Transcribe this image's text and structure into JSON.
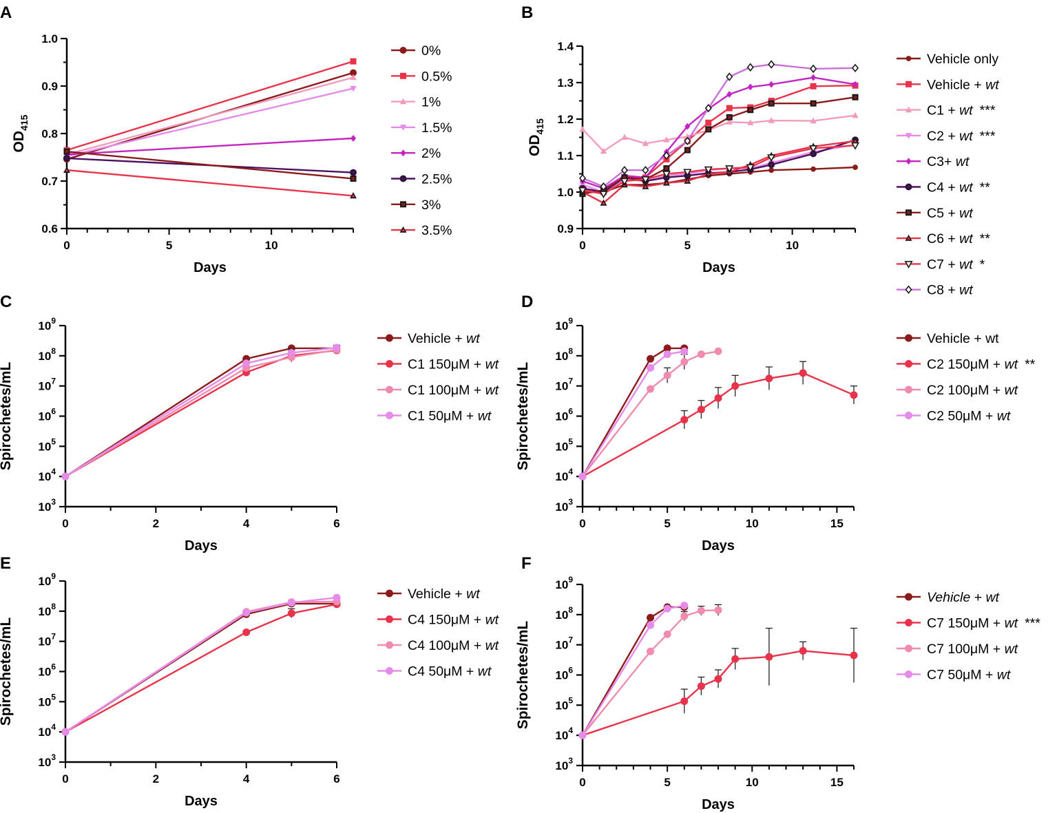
{
  "figure": {
    "panel_labels": [
      "A",
      "B",
      "C",
      "D",
      "E",
      "F"
    ]
  },
  "chart_data": [
    {
      "id": "A",
      "type": "line",
      "xlabel": "Days",
      "ylabel": "OD",
      "ylabel_sub": "415",
      "xlim": [
        0,
        14
      ],
      "ylim": [
        0.6,
        1.0
      ],
      "scale": "linear",
      "xticks": [
        0,
        5,
        10
      ],
      "yticks": [
        0.6,
        0.7,
        0.8,
        0.9,
        1.0
      ],
      "yticklabels": [
        "0.6",
        "0.7",
        "0.8",
        "0.9",
        "1.0"
      ],
      "series": [
        {
          "name": "0%",
          "color": "#8b1a1a",
          "marker": "circle",
          "x": [
            0,
            14
          ],
          "y": [
            0.746,
            0.928
          ]
        },
        {
          "name": "0.5%",
          "color": "#e8334a",
          "marker": "square",
          "x": [
            0,
            14
          ],
          "y": [
            0.765,
            0.952
          ]
        },
        {
          "name": "1%",
          "color": "#f29bbd",
          "marker": "triangle",
          "x": [
            0,
            14
          ],
          "y": [
            0.756,
            0.918
          ]
        },
        {
          "name": "1.5%",
          "color": "#e58be8",
          "marker": "triangle-down",
          "x": [
            0,
            14
          ],
          "y": [
            0.752,
            0.895
          ]
        },
        {
          "name": "2%",
          "color": "#c225c2",
          "marker": "diamond",
          "x": [
            0,
            14
          ],
          "y": [
            0.756,
            0.79
          ]
        },
        {
          "name": "2.5%",
          "color": "#4b1160",
          "marker": "circle-outline",
          "x": [
            0,
            14
          ],
          "y": [
            0.748,
            0.718
          ]
        },
        {
          "name": "3%",
          "color": "#8b1a1a",
          "marker": "square-outline",
          "x": [
            0,
            14
          ],
          "y": [
            0.762,
            0.705
          ]
        },
        {
          "name": "3.5%",
          "color": "#e8334a",
          "marker": "triangle-outline",
          "x": [
            0,
            14
          ],
          "y": [
            0.723,
            0.669
          ]
        }
      ]
    },
    {
      "id": "B",
      "type": "line",
      "xlabel": "Days",
      "ylabel": "OD",
      "ylabel_sub": "415",
      "xlim": [
        0,
        13
      ],
      "ylim": [
        0.9,
        1.4
      ],
      "scale": "linear",
      "xticks": [
        0,
        5,
        10
      ],
      "yticks": [
        0.9,
        1.0,
        1.1,
        1.2,
        1.3,
        1.4
      ],
      "yticklabels": [
        "0.9",
        "1.0",
        "1.1",
        "1.2",
        "1.3",
        "1.4"
      ],
      "series": [
        {
          "name": "Vehicle only",
          "italic": "",
          "stars": "",
          "color": "#8b1a1a",
          "marker": "circle-small",
          "x": [
            0,
            1,
            2,
            3,
            4,
            5,
            6,
            7,
            8,
            9,
            11,
            13
          ],
          "y": [
            1.0,
            1.0,
            1.02,
            1.02,
            1.025,
            1.035,
            1.045,
            1.05,
            1.055,
            1.06,
            1.063,
            1.068
          ]
        },
        {
          "name": "Vehicle + ",
          "italic": "wt",
          "stars": "",
          "color": "#e8334a",
          "marker": "square",
          "x": [
            0,
            1,
            2,
            3,
            4,
            5,
            6,
            7,
            8,
            9,
            11,
            13
          ],
          "y": [
            1.01,
            1.0,
            1.04,
            1.04,
            1.09,
            1.14,
            1.19,
            1.23,
            1.232,
            1.25,
            1.29,
            1.292
          ]
        },
        {
          "name": "C1 + ",
          "italic": "wt",
          "stars": "***",
          "color": "#f29bbd",
          "marker": "triangle",
          "x": [
            0,
            1,
            2,
            3,
            4,
            5,
            6,
            7,
            8,
            9,
            11,
            13
          ],
          "y": [
            1.172,
            1.112,
            1.15,
            1.133,
            1.143,
            1.152,
            1.17,
            1.192,
            1.19,
            1.196,
            1.195,
            1.21
          ]
        },
        {
          "name": "C2 + ",
          "italic": "wt",
          "stars": "***",
          "color": "#e58be8",
          "marker": "triangle-down",
          "x": [
            0,
            1,
            2,
            3,
            4,
            5,
            6,
            7,
            8,
            9,
            11,
            13
          ],
          "y": [
            1.02,
            1.0,
            1.035,
            1.03,
            1.045,
            1.05,
            1.06,
            1.065,
            1.065,
            1.08,
            1.11,
            1.13
          ]
        },
        {
          "name": "C3+ ",
          "italic": "wt",
          "stars": "",
          "color": "#c225c2",
          "marker": "diamond",
          "x": [
            0,
            1,
            2,
            3,
            4,
            5,
            6,
            7,
            8,
            9,
            11,
            13
          ],
          "y": [
            1.03,
            1.01,
            1.045,
            1.04,
            1.11,
            1.18,
            1.228,
            1.268,
            1.288,
            1.295,
            1.314,
            1.295
          ]
        },
        {
          "name": "C4 + ",
          "italic": "wt",
          "stars": "**",
          "color": "#4b1160",
          "marker": "circle-outline",
          "x": [
            0,
            1,
            2,
            3,
            4,
            5,
            6,
            7,
            8,
            9,
            11,
            13
          ],
          "y": [
            1.01,
            1.0,
            1.04,
            1.03,
            1.04,
            1.045,
            1.052,
            1.055,
            1.062,
            1.075,
            1.105,
            1.143
          ]
        },
        {
          "name": "C5 + ",
          "italic": "wt",
          "stars": "",
          "color": "#8b1a1a",
          "marker": "square-outline",
          "x": [
            0,
            1,
            2,
            3,
            4,
            5,
            6,
            7,
            8,
            9,
            11,
            13
          ],
          "y": [
            0.995,
            1.005,
            1.04,
            1.035,
            1.065,
            1.115,
            1.172,
            1.205,
            1.225,
            1.243,
            1.243,
            1.26
          ]
        },
        {
          "name": "C6 + ",
          "italic": "wt",
          "stars": "**",
          "color": "#e8334a",
          "marker": "triangle-outline",
          "x": [
            0,
            1,
            2,
            3,
            4,
            5,
            6,
            7,
            8,
            9,
            11,
            13
          ],
          "y": [
            1.0,
            0.97,
            1.02,
            1.015,
            1.025,
            1.03,
            1.05,
            1.055,
            1.075,
            1.1,
            1.125,
            1.14
          ]
        },
        {
          "name": "C7 + ",
          "italic": "wt",
          "stars": "*",
          "color": "#e8334a",
          "marker": "triangle-down-outline",
          "x": [
            0,
            1,
            2,
            3,
            4,
            5,
            6,
            7,
            8,
            9,
            11,
            13
          ],
          "y": [
            1.005,
            0.995,
            1.03,
            1.035,
            1.05,
            1.055,
            1.062,
            1.065,
            1.068,
            1.095,
            1.12,
            1.128
          ]
        },
        {
          "name": "C8 + ",
          "italic": "wt",
          "stars": "",
          "color": "#c970d6",
          "marker": "diamond-outline",
          "x": [
            0,
            1,
            2,
            3,
            4,
            5,
            6,
            7,
            8,
            9,
            11,
            13
          ],
          "y": [
            1.038,
            1.015,
            1.06,
            1.06,
            1.1,
            1.14,
            1.23,
            1.316,
            1.342,
            1.35,
            1.338,
            1.34
          ]
        }
      ]
    },
    {
      "id": "C",
      "type": "line",
      "xlabel": "Days",
      "ylabel": "Spirochetes/mL",
      "xlim": [
        0,
        6
      ],
      "ylim": [
        3,
        9
      ],
      "scale": "log10",
      "xticks": [
        0,
        2,
        4,
        6
      ],
      "yticks": [
        3,
        4,
        5,
        6,
        7,
        8,
        9
      ],
      "yticklabels": [
        "3",
        "4",
        "5",
        "6",
        "7",
        "8",
        "9"
      ],
      "series": [
        {
          "name": "Vehicle + ",
          "italic": "wt",
          "stars": "",
          "color": "#8b1a1a",
          "marker": "circle",
          "x": [
            0,
            4,
            5,
            6
          ],
          "y": [
            4.0,
            7.9,
            8.25,
            8.25
          ],
          "err": [
            0,
            0,
            0,
            0.1
          ]
        },
        {
          "name": "C1 150μM + ",
          "italic": "wt",
          "stars": "",
          "color": "#e8334a",
          "marker": "circle",
          "x": [
            0,
            4,
            5,
            6
          ],
          "y": [
            4.0,
            7.45,
            8.0,
            8.18
          ],
          "err": [
            0,
            0,
            0.15,
            0.1
          ]
        },
        {
          "name": "C1 100μM + ",
          "italic": "wt",
          "stars": "",
          "color": "#f08bb0",
          "marker": "circle",
          "x": [
            0,
            4,
            5,
            6
          ],
          "y": [
            4.0,
            7.6,
            7.95,
            8.2
          ],
          "err": [
            0,
            0,
            0.15,
            0.05
          ]
        },
        {
          "name": "C1 50μM + ",
          "italic": "wt",
          "stars": "",
          "color": "#e58be8",
          "marker": "circle",
          "x": [
            0,
            4,
            5,
            6
          ],
          "y": [
            4.0,
            7.75,
            8.1,
            8.27
          ],
          "err": [
            0,
            0,
            0.12,
            0.05
          ]
        }
      ]
    },
    {
      "id": "D",
      "type": "line",
      "xlabel": "Days",
      "ylabel": "Spirochetes/mL",
      "xlim": [
        0,
        16
      ],
      "ylim": [
        3,
        9
      ],
      "scale": "log10",
      "xticks": [
        0,
        5,
        10,
        15
      ],
      "yticks": [
        3,
        4,
        5,
        6,
        7,
        8,
        9
      ],
      "yticklabels": [
        "3",
        "4",
        "5",
        "6",
        "7",
        "8",
        "9"
      ],
      "series": [
        {
          "name": "Vehicle + wt",
          "italic": "",
          "stars": "",
          "color": "#8b1a1a",
          "marker": "circle",
          "x": [
            0,
            4,
            5,
            6
          ],
          "y": [
            4.0,
            7.9,
            8.25,
            8.25
          ],
          "err": [
            0,
            0,
            0,
            0
          ]
        },
        {
          "name": "C2 150μM + ",
          "italic": "wt",
          "stars": "**",
          "color": "#e8334a",
          "marker": "circle",
          "x": [
            0,
            6,
            7,
            8,
            9,
            11,
            13,
            16
          ],
          "y": [
            4.0,
            5.88,
            6.22,
            6.6,
            7.0,
            7.25,
            7.43,
            6.7
          ],
          "err": [
            0,
            0.3,
            0.3,
            0.35,
            0.35,
            0.38,
            0.38,
            0.3
          ]
        },
        {
          "name": "C2 100μM + ",
          "italic": "wt",
          "stars": "",
          "color": "#f08bb0",
          "marker": "circle",
          "x": [
            0,
            4,
            5,
            6,
            7,
            8
          ],
          "y": [
            4.0,
            6.9,
            7.35,
            7.8,
            8.05,
            8.15
          ],
          "err": [
            0,
            0,
            0.25,
            0.25,
            0,
            0
          ]
        },
        {
          "name": "C2 50μM + ",
          "italic": "wt",
          "stars": "",
          "color": "#e58be8",
          "marker": "circle",
          "x": [
            0,
            4,
            5,
            6
          ],
          "y": [
            4.0,
            7.6,
            8.05,
            8.15
          ],
          "err": [
            0,
            0,
            0,
            0
          ]
        }
      ]
    },
    {
      "id": "E",
      "type": "line",
      "xlabel": "Days",
      "ylabel": "Spirochetes/mL",
      "xlim": [
        0,
        6
      ],
      "ylim": [
        3,
        9
      ],
      "scale": "log10",
      "xticks": [
        0,
        2,
        4,
        6
      ],
      "yticks": [
        3,
        4,
        5,
        6,
        7,
        8,
        9
      ],
      "yticklabels": [
        "3",
        "4",
        "5",
        "6",
        "7",
        "8",
        "9"
      ],
      "series": [
        {
          "name": "Vehicle + ",
          "italic": "wt",
          "stars": "",
          "color": "#8b1a1a",
          "marker": "circle",
          "x": [
            0,
            4,
            5,
            6
          ],
          "y": [
            4.0,
            7.9,
            8.25,
            8.25
          ],
          "err": [
            0,
            0,
            0,
            0.1
          ]
        },
        {
          "name": "C4 150μM + ",
          "italic": "wt",
          "stars": "",
          "color": "#e8334a",
          "marker": "circle",
          "x": [
            0,
            4,
            5,
            6
          ],
          "y": [
            4.0,
            7.3,
            7.93,
            8.23
          ],
          "err": [
            0,
            0,
            0.15,
            0.1
          ]
        },
        {
          "name": "C4 100μM + ",
          "italic": "wt",
          "stars": "",
          "color": "#f08bb0",
          "marker": "circle",
          "x": [
            0,
            4,
            5,
            6
          ],
          "y": [
            4.0,
            7.98,
            8.3,
            8.32
          ],
          "err": [
            0,
            0,
            0,
            0
          ]
        },
        {
          "name": "C4 50μM + ",
          "italic": "wt",
          "stars": "",
          "color": "#e58be8",
          "marker": "circle",
          "x": [
            0,
            4,
            5,
            6
          ],
          "y": [
            4.0,
            7.95,
            8.28,
            8.45
          ],
          "err": [
            0,
            0,
            0,
            0
          ]
        }
      ]
    },
    {
      "id": "F",
      "type": "line",
      "xlabel": "Days",
      "ylabel": "Spirochetes/mL",
      "xlim": [
        0,
        16
      ],
      "ylim": [
        3,
        9
      ],
      "scale": "log10",
      "xticks": [
        0,
        5,
        10,
        15
      ],
      "yticks": [
        3,
        4,
        5,
        6,
        7,
        8,
        9
      ],
      "yticklabels": [
        "3",
        "4",
        "5",
        "6",
        "7",
        "8",
        "9"
      ],
      "series": [
        {
          "name": "",
          "italic": "Vehicle",
          "tail": " + ",
          "italic2": "wt",
          "stars": "",
          "color": "#8b1a1a",
          "marker": "circle",
          "x": [
            0,
            4,
            5,
            6
          ],
          "y": [
            4.0,
            7.9,
            8.25,
            8.25
          ],
          "err": [
            0,
            0,
            0,
            0
          ]
        },
        {
          "name": "C7 150μM + ",
          "italic": "wt",
          "stars": "***",
          "color": "#e8334a",
          "marker": "circle",
          "x": [
            0,
            6,
            7,
            8,
            9,
            11,
            13,
            16
          ],
          "y": [
            4.0,
            5.13,
            5.63,
            5.87,
            6.53,
            6.6,
            6.8,
            6.65
          ],
          "err": [
            0,
            0.4,
            0.3,
            0.3,
            0.35,
            0.95,
            0.3,
            0.9
          ]
        },
        {
          "name": "C7 100μM + ",
          "italic": "wt",
          "stars": "",
          "color": "#f08bb0",
          "marker": "circle",
          "x": [
            0,
            4,
            5,
            6,
            7,
            8
          ],
          "y": [
            4.0,
            6.78,
            7.35,
            7.95,
            8.13,
            8.15
          ],
          "err": [
            0,
            0,
            0,
            0.15,
            0.15,
            0.18
          ]
        },
        {
          "name": "C7 50μM + ",
          "italic": "wt",
          "stars": "",
          "color": "#e58be8",
          "marker": "circle",
          "x": [
            0,
            4,
            5,
            6
          ],
          "y": [
            4.0,
            7.65,
            8.2,
            8.3
          ],
          "err": [
            0,
            0,
            0,
            0
          ]
        }
      ]
    }
  ]
}
